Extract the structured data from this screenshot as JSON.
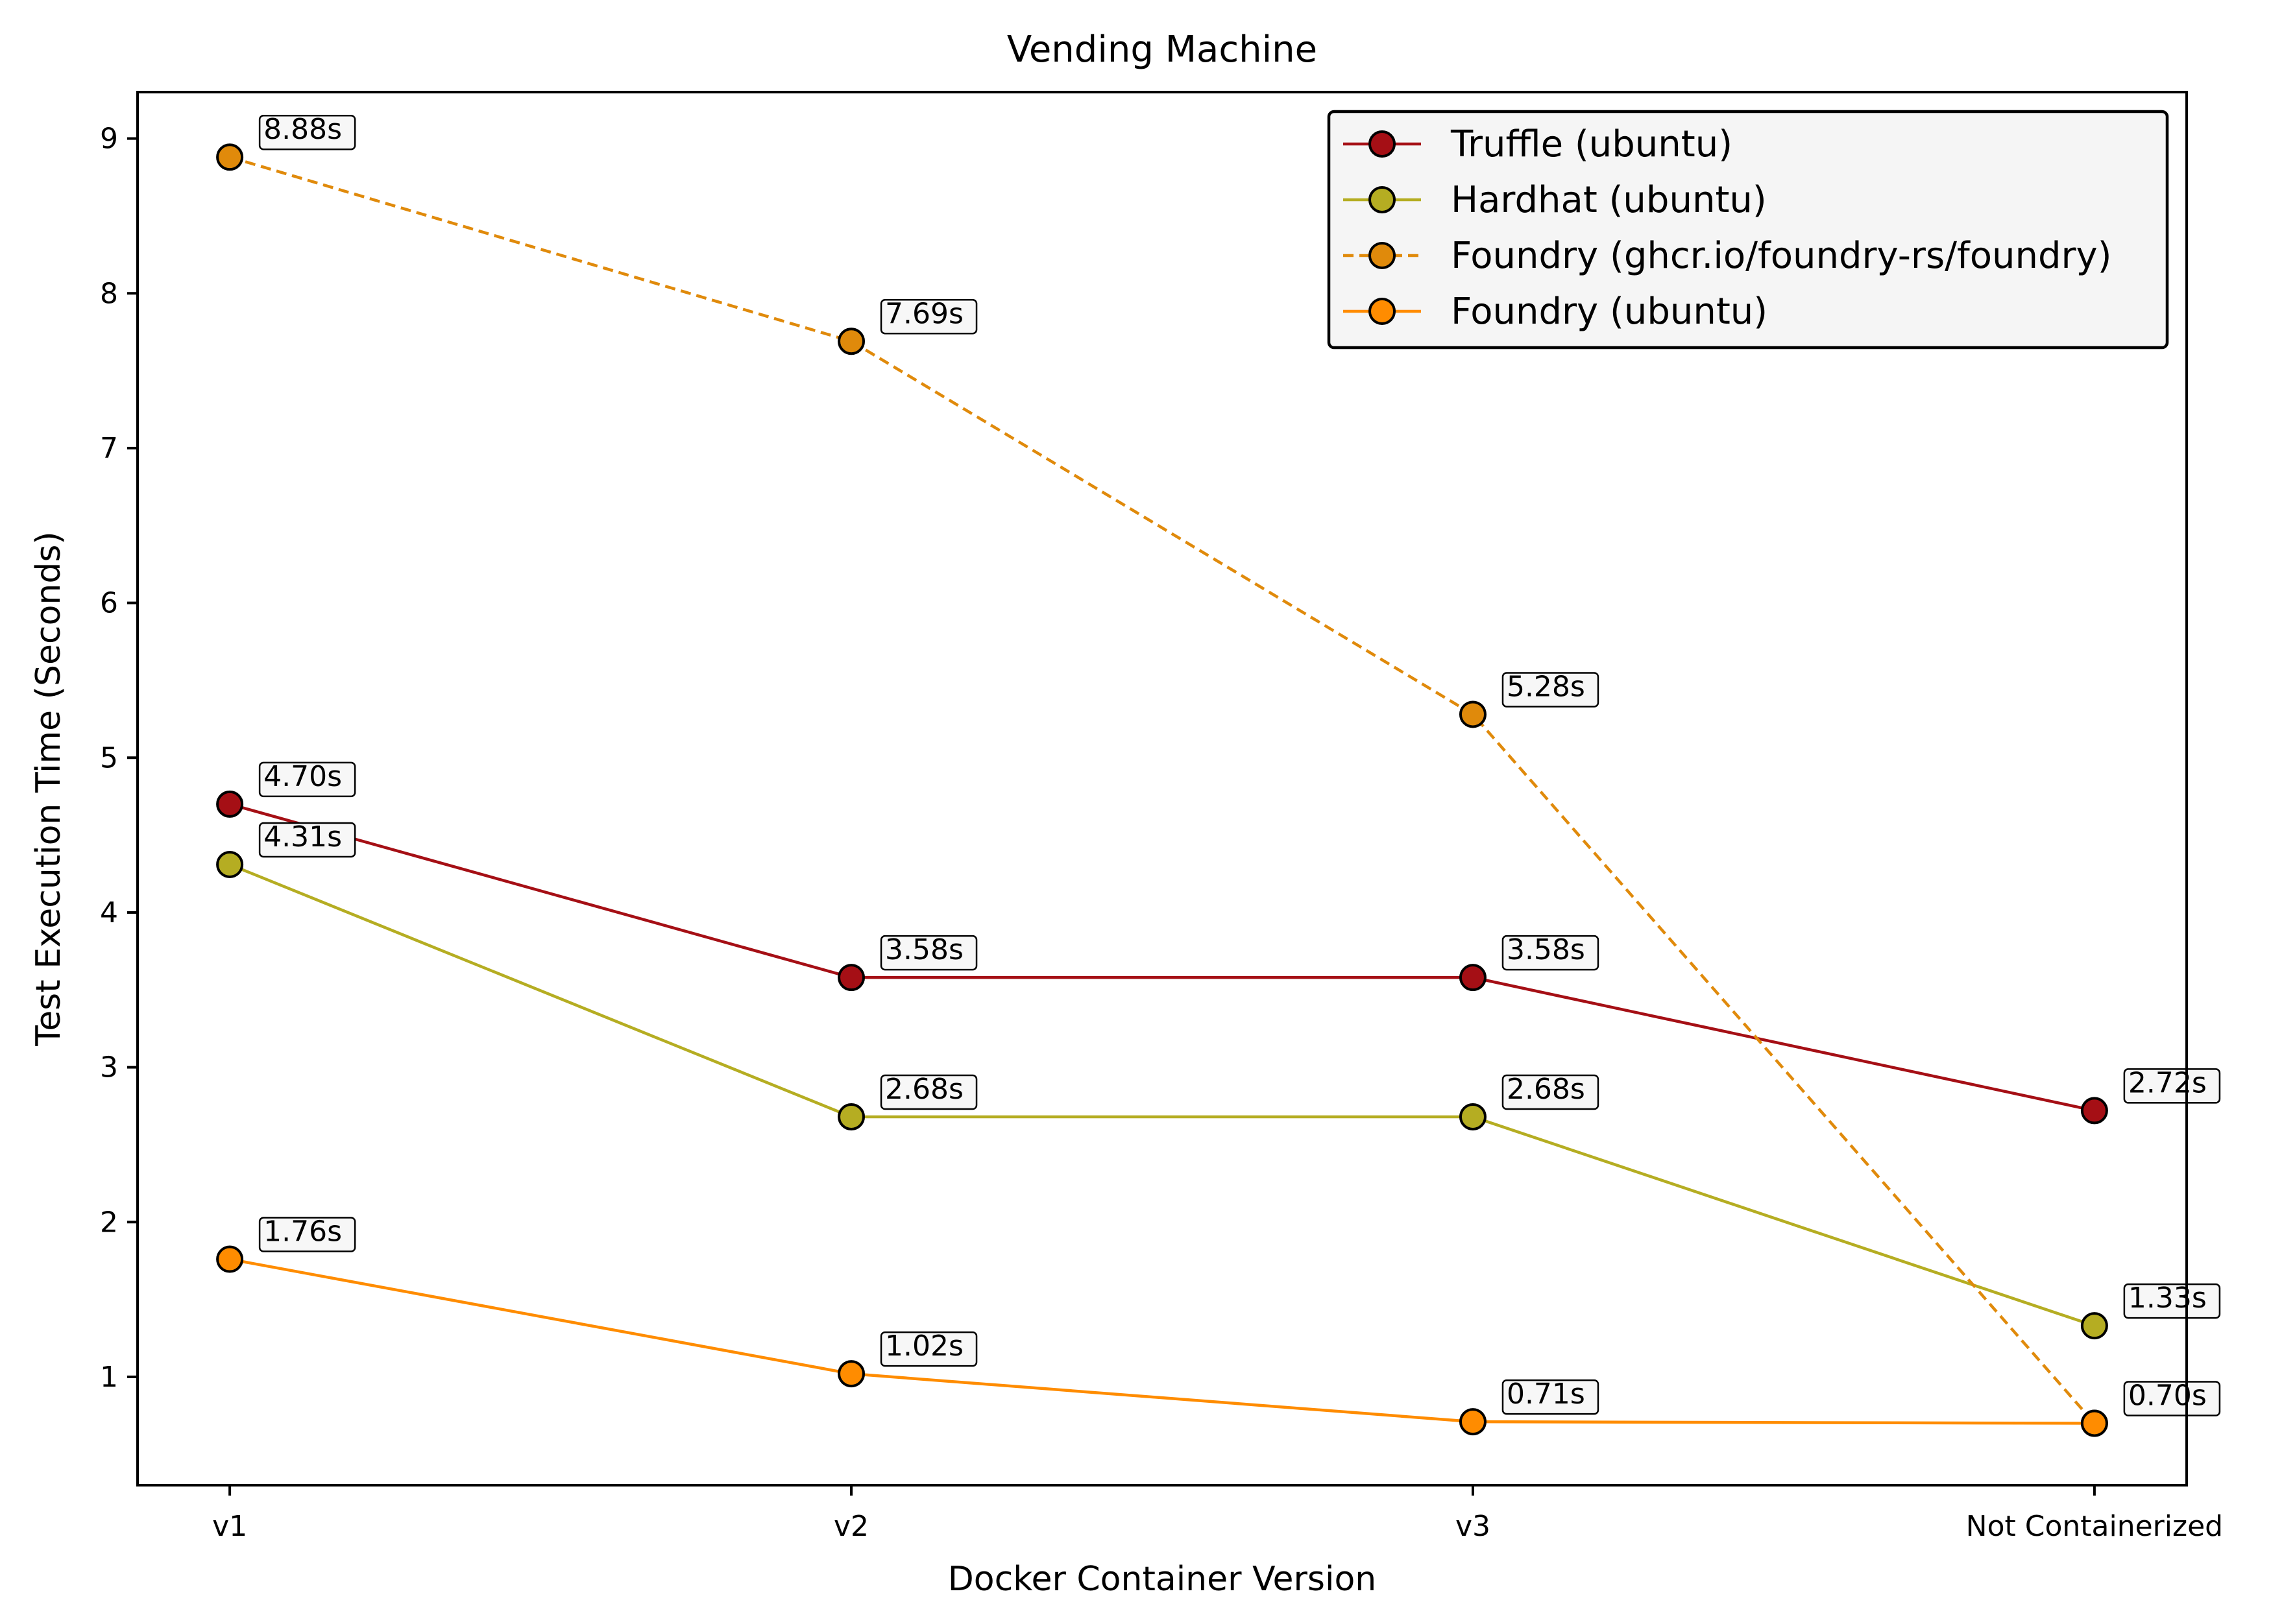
{
  "chart_data": {
    "type": "line",
    "title": "Vending Machine",
    "xlabel": "Docker Container Version",
    "ylabel": "Test Execution Time (Seconds)",
    "categories": [
      "v1",
      "v2",
      "v3",
      "Not Containerized"
    ],
    "ylim": [
      0.3,
      9.3
    ],
    "yticks": [
      1,
      2,
      3,
      4,
      5,
      6,
      7,
      8,
      9
    ],
    "grid": false,
    "legend_position": "top-right",
    "series": [
      {
        "name": "Truffle (ubuntu)",
        "color": "#a50f15",
        "line_style": "solid",
        "points": [
          {
            "category": "v1",
            "value": 4.7,
            "label": "4.70s"
          },
          {
            "category": "v2",
            "value": 3.58,
            "label": "3.58s"
          },
          {
            "category": "v3",
            "value": 3.58,
            "label": "3.58s"
          },
          {
            "category": "Not Containerized",
            "value": 2.72,
            "label": "2.72s"
          }
        ]
      },
      {
        "name": "Hardhat (ubuntu)",
        "color": "#b5ad22",
        "line_style": "solid",
        "points": [
          {
            "category": "v1",
            "value": 4.31,
            "label": "4.31s"
          },
          {
            "category": "v2",
            "value": 2.68,
            "label": "2.68s"
          },
          {
            "category": "v3",
            "value": 2.68,
            "label": "2.68s"
          },
          {
            "category": "Not Containerized",
            "value": 1.33,
            "label": "1.33s"
          }
        ]
      },
      {
        "name": "Foundry (ghcr.io/foundry-rs/foundry)",
        "color": "#e08a0b",
        "line_style": "dashed",
        "points": [
          {
            "category": "v1",
            "value": 8.88,
            "label": "8.88s"
          },
          {
            "category": "v2",
            "value": 7.69,
            "label": "7.69s"
          },
          {
            "category": "v3",
            "value": 5.28,
            "label": "5.28s"
          },
          {
            "category": "Not Containerized",
            "value": 0.7,
            "label": ""
          }
        ]
      },
      {
        "name": "Foundry (ubuntu)",
        "color": "#ff8c00",
        "line_style": "solid",
        "points": [
          {
            "category": "v1",
            "value": 1.76,
            "label": "1.76s"
          },
          {
            "category": "v2",
            "value": 1.02,
            "label": "1.02s"
          },
          {
            "category": "v3",
            "value": 0.71,
            "label": "0.71s"
          },
          {
            "category": "Not Containerized",
            "value": 0.7,
            "label": "0.70s"
          }
        ]
      }
    ]
  }
}
